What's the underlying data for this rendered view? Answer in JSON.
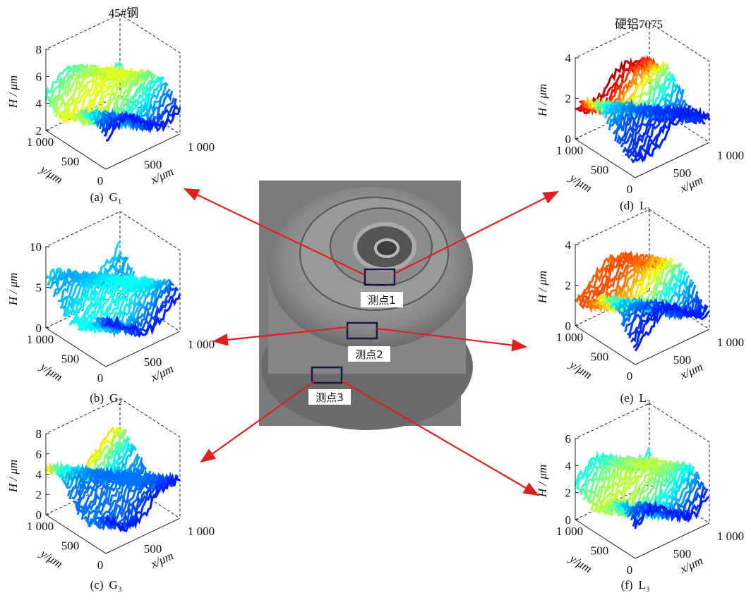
{
  "column_titles": [
    "45#钢",
    "硬铝7075"
  ],
  "photo_labels": [
    "测点1",
    "测点2",
    "测点3"
  ],
  "panels": [
    {
      "tag": "(a)",
      "letter": "G",
      "sub": "1",
      "zlabel": "H / μm",
      "ylabel": "y/μm",
      "xlabel": "x/μm",
      "zticks": [
        "2",
        "4",
        "6",
        "8"
      ],
      "yticks": [
        "1 000",
        "500",
        "0"
      ],
      "xticks": [
        "500",
        "1 000"
      ]
    },
    {
      "tag": "(b)",
      "letter": "G",
      "sub": "2",
      "zlabel": "H / μm",
      "ylabel": "y/μm",
      "xlabel": "x/μm",
      "zticks": [
        "0",
        "5",
        "10"
      ],
      "yticks": [
        "1 000",
        "500",
        "0"
      ],
      "xticks": [
        "500",
        "1 000"
      ]
    },
    {
      "tag": "(c)",
      "letter": "G",
      "sub": "3",
      "zlabel": "H / μm",
      "ylabel": "y/μm",
      "xlabel": "x/μm",
      "zticks": [
        "0",
        "2",
        "4",
        "6",
        "8"
      ],
      "yticks": [
        "1 000",
        "500",
        "0"
      ],
      "xticks": [
        "500",
        "1 000"
      ]
    },
    {
      "tag": "(d)",
      "letter": "L",
      "sub": "1",
      "zlabel": "H / μm",
      "ylabel": "y/μm",
      "xlabel": "x/μm",
      "zticks": [
        "0",
        "2",
        "4"
      ],
      "yticks": [
        "1 000",
        "500",
        "0"
      ],
      "xticks": [
        "500",
        "1 000"
      ]
    },
    {
      "tag": "(e)",
      "letter": "L",
      "sub": "2",
      "zlabel": "H / μm",
      "ylabel": "y/μm",
      "xlabel": "x/μm",
      "zticks": [
        "0",
        "2",
        "4"
      ],
      "yticks": [
        "1 000",
        "500",
        "0"
      ],
      "xticks": [
        "500",
        "1 000"
      ]
    },
    {
      "tag": "(f)",
      "letter": "L",
      "sub": "3",
      "zlabel": "H / μm",
      "ylabel": "y/μm",
      "xlabel": "x/μm",
      "zticks": [
        "0",
        "2",
        "4",
        "6"
      ],
      "yticks": [
        "1 000",
        "500",
        "0"
      ],
      "xticks": [
        "500",
        "1 000"
      ]
    }
  ]
}
